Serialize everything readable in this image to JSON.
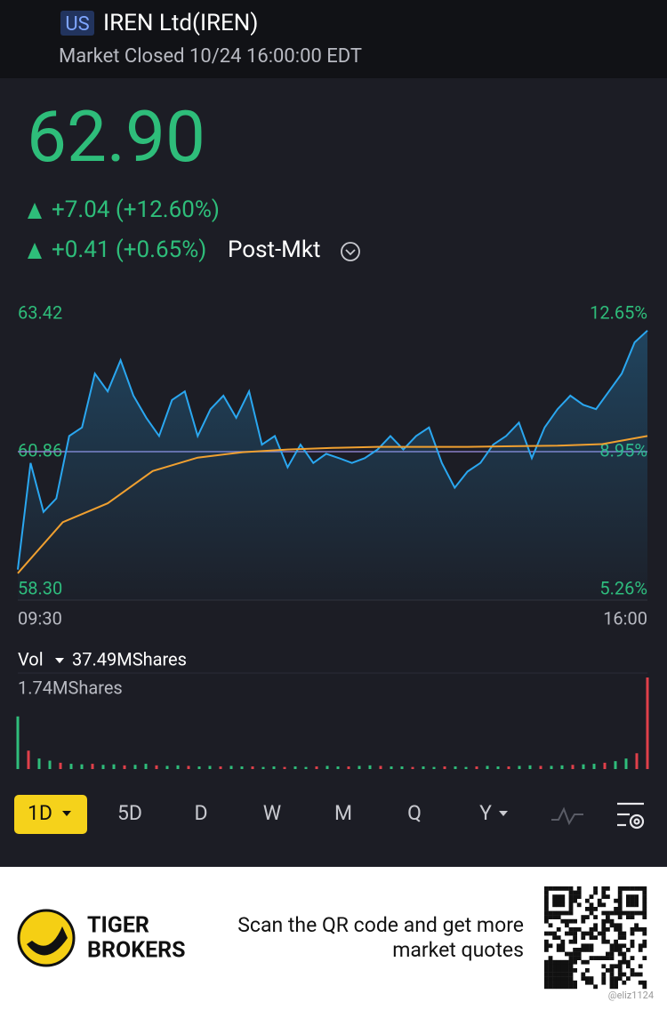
{
  "header": {
    "market": "US",
    "name": "IREN Ltd(IREN)",
    "status": "Market Closed 10/24 16:00:00 EDT"
  },
  "quote": {
    "price": "62.90",
    "change": "+7.04 (+12.60%)",
    "post_change": "+0.41 (+0.65%)",
    "post_label": "Post-Mkt"
  },
  "chart_data": [
    {
      "type": "line",
      "ylim": [
        58.3,
        63.42
      ],
      "yticks": [
        63.42,
        60.86,
        {
          "value": 58.3,
          "label": "58.30"
        }
      ],
      "y2lim": [
        5.26,
        12.65
      ],
      "y2ticks": [
        {
          "value": 12.65,
          "label": "12.65%"
        },
        {
          "value": 8.95,
          "label": "8.95%"
        },
        {
          "value": 5.26,
          "label": "5.26%"
        }
      ],
      "x_labels": [
        "09:30",
        "16:00"
      ],
      "series": [
        {
          "color": "#2aa7f0",
          "values": [
            58.67,
            60.65,
            59.74,
            59.99,
            61.15,
            61.31,
            62.31,
            61.98,
            62.56,
            61.9,
            61.49,
            61.15,
            61.82,
            61.98,
            61.15,
            61.65,
            61.9,
            61.49,
            61.98,
            60.99,
            61.15,
            60.57,
            60.99,
            60.65,
            60.82,
            60.74,
            60.65,
            60.74,
            60.9,
            61.15,
            60.9,
            61.15,
            61.31,
            60.65,
            60.19,
            60.49,
            60.65,
            60.99,
            61.15,
            61.4,
            60.74,
            61.31,
            61.65,
            61.9,
            61.73,
            61.65,
            61.98,
            62.31,
            62.89,
            63.11
          ]
        },
        {
          "color": "#f0a030",
          "values": [
            58.6,
            59.55,
            59.9,
            60.5,
            60.75,
            60.85,
            60.9,
            60.93,
            60.95,
            60.95,
            60.95,
            60.96,
            60.97,
            61.0,
            61.15
          ]
        }
      ]
    },
    {
      "type": "bar",
      "title": "Vol",
      "total": "37.49MShares",
      "ylim": [
        0,
        1.74
      ],
      "yticks": [
        {
          "value": 1.74,
          "label": "1.74MShares"
        }
      ],
      "color": "#2fbd7b",
      "down_color": "#e0404a",
      "values": [
        1.0,
        0.35,
        0.2,
        0.16,
        0.12,
        0.1,
        0.09,
        0.1,
        0.08,
        0.09,
        0.07,
        0.08,
        0.1,
        0.07,
        0.06,
        0.07,
        0.06,
        0.05,
        0.06,
        0.05,
        0.06,
        0.05,
        0.05,
        0.04,
        0.05,
        0.04,
        0.05,
        0.04,
        0.05,
        0.06,
        0.05,
        0.05,
        0.06,
        0.07,
        0.06,
        0.05,
        0.05,
        0.04,
        0.05,
        0.04,
        0.05,
        0.05,
        0.04,
        0.05,
        0.06,
        0.05,
        0.05,
        0.06,
        0.07,
        0.06,
        0.06,
        0.07,
        0.08,
        0.09,
        0.1,
        0.12,
        0.15,
        0.2,
        0.3,
        1.74
      ]
    }
  ],
  "tabs": [
    "1D",
    "5D",
    "D",
    "W",
    "M",
    "Q",
    "Y"
  ],
  "footer": {
    "brand": [
      "TIGER",
      "BROKERS"
    ],
    "cta": [
      "Scan the QR code and get more",
      "market quotes"
    ],
    "watermark": "@eliz1124"
  }
}
